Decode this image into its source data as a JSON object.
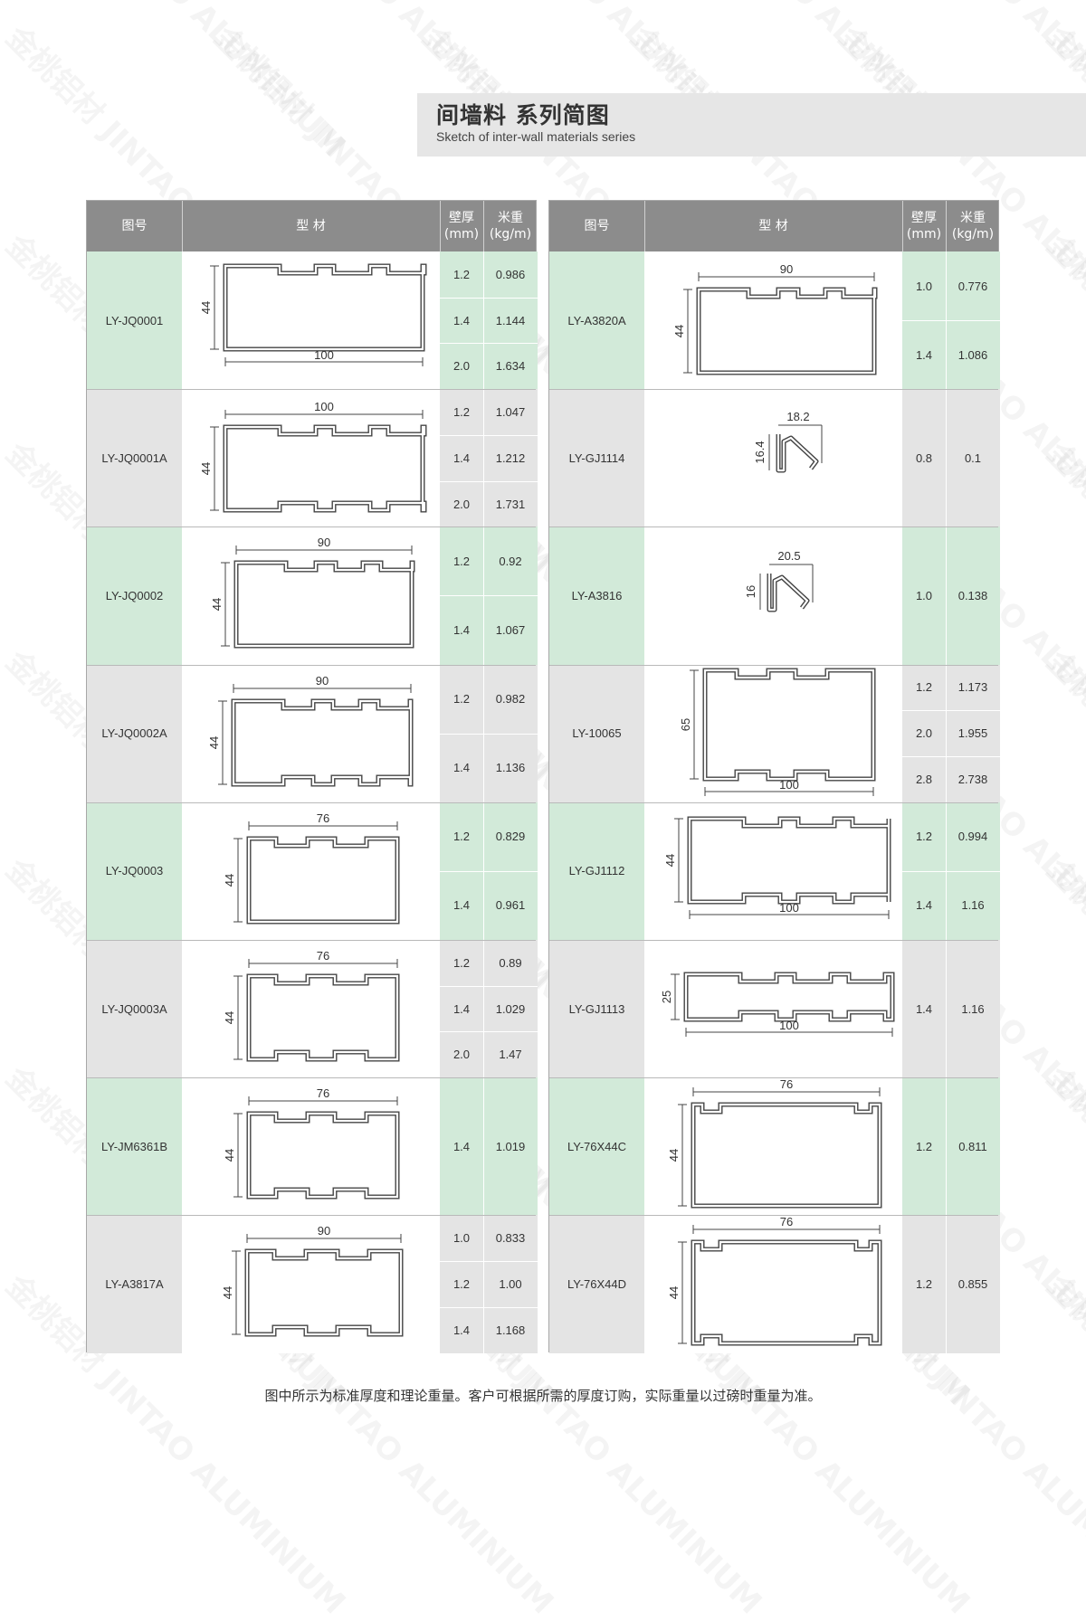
{
  "watermark": "金桃铝材 JINTAO ALUMINIUM",
  "header": {
    "title": "间墙料 系列简图",
    "subtitle": "Sketch of inter-wall materials series"
  },
  "columns": {
    "code": "图号",
    "profile": "型  材",
    "thickness": "壁厚\n(mm)",
    "weight": "米重\n(kg/m)"
  },
  "left_rows": [
    {
      "code": "LY-JQ0001",
      "dims": [
        "44",
        "100"
      ],
      "subs": [
        [
          "1.2",
          "0.986"
        ],
        [
          "1.4",
          "1.144"
        ],
        [
          "2.0",
          "1.634"
        ]
      ]
    },
    {
      "code": "LY-JQ0001A",
      "dims": [
        "44",
        "100"
      ],
      "subs": [
        [
          "1.2",
          "1.047"
        ],
        [
          "1.4",
          "1.212"
        ],
        [
          "2.0",
          "1.731"
        ]
      ]
    },
    {
      "code": "LY-JQ0002",
      "dims": [
        "44",
        "90"
      ],
      "subs": [
        [
          "1.2",
          "0.92"
        ],
        [
          "1.4",
          "1.067"
        ]
      ]
    },
    {
      "code": "LY-JQ0002A",
      "dims": [
        "44",
        "90"
      ],
      "subs": [
        [
          "1.2",
          "0.982"
        ],
        [
          "1.4",
          "1.136"
        ]
      ]
    },
    {
      "code": "LY-JQ0003",
      "dims": [
        "44",
        "76"
      ],
      "subs": [
        [
          "1.2",
          "0.829"
        ],
        [
          "1.4",
          "0.961"
        ]
      ]
    },
    {
      "code": "LY-JQ0003A",
      "dims": [
        "44",
        "76"
      ],
      "subs": [
        [
          "1.2",
          "0.89"
        ],
        [
          "1.4",
          "1.029"
        ],
        [
          "2.0",
          "1.47"
        ]
      ]
    },
    {
      "code": "LY-JM6361B",
      "dims": [
        "44",
        "76"
      ],
      "subs": [
        [
          "1.4",
          "1.019"
        ]
      ]
    },
    {
      "code": "LY-A3817A",
      "dims": [
        "44",
        "90"
      ],
      "subs": [
        [
          "1.0",
          "0.833"
        ],
        [
          "1.2",
          "1.00"
        ],
        [
          "1.4",
          "1.168"
        ]
      ]
    }
  ],
  "right_rows": [
    {
      "code": "LY-A3820A",
      "dims": [
        "44",
        "90"
      ],
      "subs": [
        [
          "1.0",
          "0.776"
        ],
        [
          "1.4",
          "1.086"
        ]
      ]
    },
    {
      "code": "LY-GJ1114",
      "dims": [
        "16.4",
        "18.2"
      ],
      "subs": [
        [
          "0.8",
          "0.1"
        ]
      ]
    },
    {
      "code": "LY-A3816",
      "dims": [
        "16",
        "20.5"
      ],
      "subs": [
        [
          "1.0",
          "0.138"
        ]
      ]
    },
    {
      "code": "LY-10065",
      "dims": [
        "65",
        "100"
      ],
      "subs": [
        [
          "1.2",
          "1.173"
        ],
        [
          "2.0",
          "1.955"
        ],
        [
          "2.8",
          "2.738"
        ]
      ]
    },
    {
      "code": "LY-GJ1112",
      "dims": [
        "44",
        "100"
      ],
      "subs": [
        [
          "1.2",
          "0.994"
        ],
        [
          "1.4",
          "1.16"
        ]
      ]
    },
    {
      "code": "LY-GJ1113",
      "dims": [
        "25",
        "100"
      ],
      "subs": [
        [
          "1.4",
          "1.16"
        ]
      ]
    },
    {
      "code": "LY-76X44C",
      "dims": [
        "44",
        "76"
      ],
      "subs": [
        [
          "1.2",
          "0.811"
        ]
      ]
    },
    {
      "code": "LY-76X44D",
      "dims": [
        "44",
        "76"
      ],
      "subs": [
        [
          "1.2",
          "0.855"
        ]
      ]
    }
  ],
  "footer": "图中所示为标准厚度和理论重量。客户可根据所需的厚度订购，实际重量以过磅时重量为准。"
}
